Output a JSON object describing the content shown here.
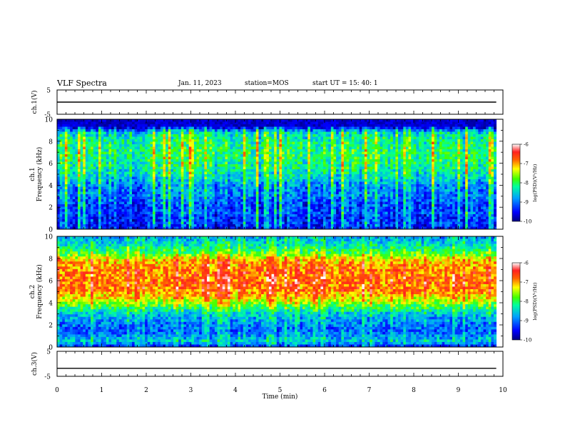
{
  "header": {
    "title": "VLF Spectra",
    "date": "Jan. 11, 2023",
    "station": "station=MOS",
    "start": "start UT =  15: 40: 1"
  },
  "chart_data": [
    {
      "type": "line",
      "panel": "ch.1",
      "ylabel": "ch.1(V)",
      "ylim": [
        -5,
        5
      ],
      "y_tick_labels": [
        "5",
        "-5"
      ],
      "xlim": [
        0,
        10
      ],
      "series": [
        {
          "x": [
            0,
            9.85
          ],
          "y": [
            0,
            0
          ]
        }
      ]
    },
    {
      "type": "heatmap",
      "panel": "ch.1 spectrogram",
      "ylabel": "ch.1 Frequency (kHz)",
      "ylim": [
        0,
        10
      ],
      "y_ticks": [
        0,
        2,
        4,
        6,
        8,
        10
      ],
      "xlim": [
        0,
        10
      ],
      "data_end_min": 9.85,
      "mean_profile": [
        {
          "f": 0.0,
          "v": -9.6
        },
        {
          "f": 0.5,
          "v": -9.3
        },
        {
          "f": 1.0,
          "v": -9.4
        },
        {
          "f": 1.5,
          "v": -9.2
        },
        {
          "f": 2.0,
          "v": -9.3
        },
        {
          "f": 3.0,
          "v": -9.0
        },
        {
          "f": 4.0,
          "v": -8.9
        },
        {
          "f": 5.0,
          "v": -8.4
        },
        {
          "f": 6.0,
          "v": -8.2
        },
        {
          "f": 7.0,
          "v": -8.1
        },
        {
          "f": 8.0,
          "v": -8.2
        },
        {
          "f": 8.8,
          "v": -8.5
        },
        {
          "f": 9.2,
          "v": -9.5
        },
        {
          "f": 10.0,
          "v": -9.9
        }
      ],
      "colorbar": {
        "label": "log(PSD)(V²/Hz)",
        "range": [
          -10,
          -6
        ],
        "ticks": [
          "-6",
          "-7",
          "-8",
          "-9",
          "-10"
        ]
      }
    },
    {
      "type": "heatmap",
      "panel": "ch.2 spectrogram",
      "ylabel": "ch.2 Frequency (kHz)",
      "ylim": [
        0,
        10
      ],
      "y_ticks": [
        0,
        2,
        4,
        6,
        8,
        10
      ],
      "xlim": [
        0,
        10
      ],
      "data_end_min": 9.85,
      "mean_profile": [
        {
          "f": 0.0,
          "v": -9.4
        },
        {
          "f": 0.5,
          "v": -8.6
        },
        {
          "f": 1.0,
          "v": -8.9
        },
        {
          "f": 1.5,
          "v": -9.1
        },
        {
          "f": 2.0,
          "v": -9.0
        },
        {
          "f": 3.0,
          "v": -8.6
        },
        {
          "f": 4.0,
          "v": -7.6
        },
        {
          "f": 5.0,
          "v": -6.9
        },
        {
          "f": 6.0,
          "v": -6.8
        },
        {
          "f": 7.0,
          "v": -6.9
        },
        {
          "f": 7.8,
          "v": -7.1
        },
        {
          "f": 8.5,
          "v": -7.9
        },
        {
          "f": 9.2,
          "v": -8.4
        },
        {
          "f": 10.0,
          "v": -8.8
        }
      ],
      "colorbar": {
        "label": "log(PSD)(V²/Hz)",
        "range": [
          -10,
          -6
        ],
        "ticks": [
          "-6",
          "-7",
          "-8",
          "-9",
          "-10"
        ]
      }
    },
    {
      "type": "line",
      "panel": "ch.3",
      "ylabel": "ch.3(V)",
      "ylim": [
        -5,
        5
      ],
      "y_tick_labels": [
        "5",
        "-5"
      ],
      "xlim": [
        0,
        10
      ],
      "series": [
        {
          "x": [
            0,
            9.85
          ],
          "y": [
            -1.8,
            -1.8
          ]
        }
      ]
    }
  ],
  "xaxis": {
    "label": "Time (min)",
    "range": [
      0,
      10
    ],
    "tick_labels": [
      "0",
      "1",
      "2",
      "3",
      "4",
      "5",
      "6",
      "7",
      "8",
      "9",
      "10"
    ]
  }
}
